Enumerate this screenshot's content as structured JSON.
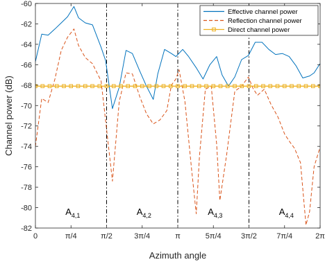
{
  "chart_data": {
    "type": "line",
    "xlabel": "Azimuth angle",
    "ylabel": "Channel power (dB)",
    "xlim": [
      0,
      6.2832
    ],
    "ylim": [
      -82,
      -60
    ],
    "grid": false,
    "legend_position": "top-right",
    "x_ticks": [
      {
        "value": 0,
        "label": "0"
      },
      {
        "value": 0.7854,
        "label": "π/4"
      },
      {
        "value": 1.5708,
        "label": "π/2"
      },
      {
        "value": 2.3562,
        "label": "3π/4"
      },
      {
        "value": 3.1416,
        "label": "π"
      },
      {
        "value": 3.927,
        "label": "5π/4"
      },
      {
        "value": 4.7124,
        "label": "3π/2"
      },
      {
        "value": 5.4978,
        "label": "7π/4"
      },
      {
        "value": 6.2832,
        "label": "2π"
      }
    ],
    "y_ticks": [
      -82,
      -80,
      -78,
      -76,
      -74,
      -72,
      -70,
      -68,
      -66,
      -64,
      -62,
      -60
    ],
    "dividers": [
      1.5708,
      3.1416,
      4.7124
    ],
    "regions": [
      {
        "main": "A",
        "sub": "4,1",
        "x": 0.7854,
        "y": -80.7
      },
      {
        "main": "A",
        "sub": "4,2",
        "x": 2.3562,
        "y": -80.7
      },
      {
        "main": "A",
        "sub": "4,3",
        "x": 3.927,
        "y": -80.7
      },
      {
        "main": "A",
        "sub": "4,4",
        "x": 5.4978,
        "y": -80.7
      }
    ],
    "series": [
      {
        "name": "Effective channel power",
        "color": "#0072BD",
        "dash": "solid",
        "marker": "none",
        "points": [
          [
            0,
            -65.7
          ],
          [
            0.14,
            -63.0
          ],
          [
            0.28,
            -63.1
          ],
          [
            0.43,
            -62.5
          ],
          [
            0.57,
            -61.9
          ],
          [
            0.71,
            -61.3
          ],
          [
            0.85,
            -60.3
          ],
          [
            0.95,
            -61.4
          ],
          [
            1.1,
            -61.9
          ],
          [
            1.26,
            -62.1
          ],
          [
            1.45,
            -64.3
          ],
          [
            1.55,
            -65.6
          ],
          [
            1.7,
            -70.3
          ],
          [
            1.85,
            -68.2
          ],
          [
            2.0,
            -64.6
          ],
          [
            2.14,
            -64.9
          ],
          [
            2.3,
            -66.6
          ],
          [
            2.45,
            -68.1
          ],
          [
            2.6,
            -69.4
          ],
          [
            2.7,
            -66.9
          ],
          [
            2.85,
            -64.5
          ],
          [
            3.0,
            -64.9
          ],
          [
            3.1,
            -65.2
          ],
          [
            3.25,
            -64.5
          ],
          [
            3.38,
            -65.2
          ],
          [
            3.55,
            -66.3
          ],
          [
            3.7,
            -67.4
          ],
          [
            3.85,
            -66.0
          ],
          [
            4.0,
            -65.2
          ],
          [
            4.12,
            -67.0
          ],
          [
            4.26,
            -68.1
          ],
          [
            4.4,
            -67.2
          ],
          [
            4.55,
            -65.5
          ],
          [
            4.7,
            -65.1
          ],
          [
            4.85,
            -63.8
          ],
          [
            5.0,
            -63.8
          ],
          [
            5.15,
            -64.5
          ],
          [
            5.3,
            -65.0
          ],
          [
            5.45,
            -64.9
          ],
          [
            5.6,
            -65.2
          ],
          [
            5.75,
            -66.1
          ],
          [
            5.9,
            -67.3
          ],
          [
            6.05,
            -67.1
          ],
          [
            6.15,
            -66.8
          ],
          [
            6.28,
            -65.9
          ]
        ]
      },
      {
        "name": "Reflection channel power",
        "color": "#D95319",
        "dash": "dashed",
        "marker": "none",
        "points": [
          [
            0,
            -74.0
          ],
          [
            0.14,
            -69.3
          ],
          [
            0.28,
            -69.7
          ],
          [
            0.43,
            -67.4
          ],
          [
            0.57,
            -64.6
          ],
          [
            0.71,
            -63.3
          ],
          [
            0.85,
            -62.5
          ],
          [
            0.95,
            -64.1
          ],
          [
            1.1,
            -65.3
          ],
          [
            1.26,
            -65.9
          ],
          [
            1.45,
            -67.6
          ],
          [
            1.55,
            -71.5
          ],
          [
            1.7,
            -77.4
          ],
          [
            1.85,
            -69.6
          ],
          [
            2.0,
            -66.8
          ],
          [
            2.14,
            -66.9
          ],
          [
            2.3,
            -69.1
          ],
          [
            2.45,
            -70.8
          ],
          [
            2.6,
            -71.8
          ],
          [
            2.75,
            -71.4
          ],
          [
            2.9,
            -70.5
          ],
          [
            3.0,
            -68.0
          ],
          [
            3.1,
            -67.4
          ],
          [
            3.17,
            -66.5
          ],
          [
            3.3,
            -69.6
          ],
          [
            3.45,
            -76.4
          ],
          [
            3.55,
            -80.6
          ],
          [
            3.62,
            -75.0
          ],
          [
            3.75,
            -68.4
          ],
          [
            3.88,
            -68.1
          ],
          [
            4.0,
            -73.8
          ],
          [
            4.07,
            -79.3
          ],
          [
            4.22,
            -74.8
          ],
          [
            4.4,
            -68.6
          ],
          [
            4.55,
            -68.1
          ],
          [
            4.7,
            -67.2
          ],
          [
            4.8,
            -68.3
          ],
          [
            4.9,
            -69.0
          ],
          [
            5.05,
            -68.4
          ],
          [
            5.2,
            -69.9
          ],
          [
            5.35,
            -71.1
          ],
          [
            5.5,
            -72.8
          ],
          [
            5.62,
            -73.6
          ],
          [
            5.72,
            -74.2
          ],
          [
            5.85,
            -75.6
          ],
          [
            5.97,
            -81.7
          ],
          [
            6.05,
            -80.4
          ],
          [
            6.15,
            -76.0
          ],
          [
            6.28,
            -74.1
          ]
        ]
      },
      {
        "name": "Direct channel power",
        "color": "#EDB120",
        "dash": "solid",
        "marker": "square",
        "constant_y": -68.1
      }
    ]
  }
}
